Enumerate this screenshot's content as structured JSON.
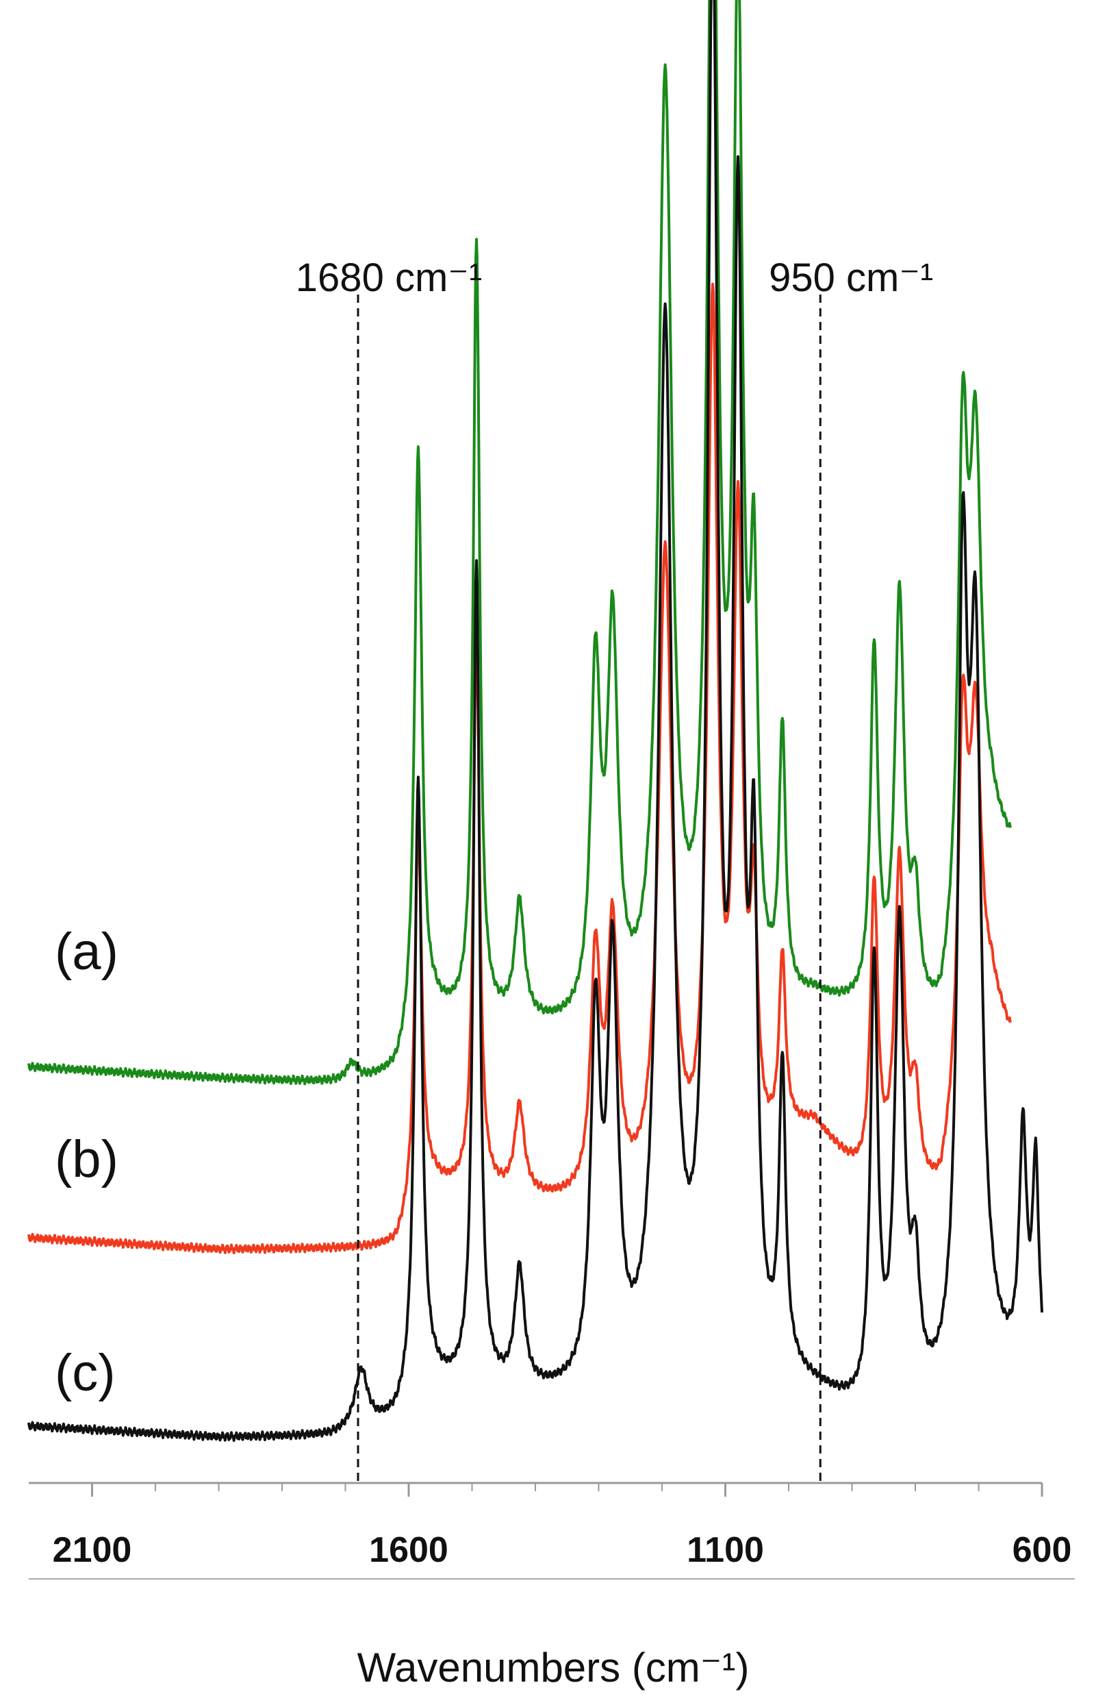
{
  "chart_data": {
    "type": "line",
    "title": "",
    "xlabel": "Wavenumbers (cm⁻¹)",
    "ylabel": "",
    "xlim": [
      2200,
      600
    ],
    "x_reversed": true,
    "grid": false,
    "legend": "none",
    "x_ticks": [
      {
        "value": 2100,
        "label": "2100"
      },
      {
        "value": 1600,
        "label": "1600"
      },
      {
        "value": 1100,
        "label": "1100"
      },
      {
        "value": 600,
        "label": "600"
      }
    ],
    "minor_tick_step": 100,
    "annotations": [
      {
        "x": 1680,
        "label": "1680 cm⁻¹",
        "style": "dashed-vertical"
      },
      {
        "x": 950,
        "label": "950 cm⁻¹",
        "style": "dashed-vertical"
      }
    ],
    "series": [
      {
        "label": "(a)",
        "color": "#1a8a1a",
        "offset": 0.61,
        "x_end": 650,
        "baseline": [
          [
            2200,
            0.02
          ],
          [
            1900,
            0.0
          ],
          [
            1700,
            -0.01
          ],
          [
            1620,
            0.0
          ],
          [
            1560,
            0.1
          ],
          [
            1100,
            0.04
          ],
          [
            1000,
            0.1
          ],
          [
            960,
            0.12
          ],
          [
            880,
            0.1
          ],
          [
            760,
            0.07
          ],
          [
            680,
            0.4
          ],
          [
            650,
            0.38
          ]
        ],
        "peaks": [
          {
            "x": 1690,
            "h": 0.03,
            "w": 10
          },
          {
            "x": 1585,
            "h": 1.0,
            "w": 7
          },
          {
            "x": 1493,
            "h": 1.32,
            "w": 6
          },
          {
            "x": 1425,
            "h": 0.2,
            "w": 9
          },
          {
            "x": 1305,
            "h": 0.58,
            "w": 9
          },
          {
            "x": 1278,
            "h": 0.65,
            "w": 10
          },
          {
            "x": 1195,
            "h": 1.6,
            "w": 13
          },
          {
            "x": 1120,
            "h": 2.1,
            "w": 10
          },
          {
            "x": 1080,
            "h": 1.7,
            "w": 9
          },
          {
            "x": 1055,
            "h": 0.65,
            "w": 7
          },
          {
            "x": 1010,
            "h": 0.45,
            "w": 6
          },
          {
            "x": 865,
            "h": 0.6,
            "w": 7
          },
          {
            "x": 825,
            "h": 0.7,
            "w": 9
          },
          {
            "x": 800,
            "h": 0.18,
            "w": 8
          },
          {
            "x": 725,
            "h": 0.8,
            "w": 9
          },
          {
            "x": 705,
            "h": 0.72,
            "w": 11
          }
        ]
      },
      {
        "label": "(b)",
        "color": "#f03a1e",
        "offset": 0.32,
        "x_end": 650,
        "baseline": [
          [
            2200,
            0.02
          ],
          [
            1900,
            0.0
          ],
          [
            1620,
            0.0
          ],
          [
            1560,
            0.1
          ],
          [
            1100,
            0.04
          ],
          [
            1000,
            0.18
          ],
          [
            960,
            0.2
          ],
          [
            880,
            0.1
          ],
          [
            760,
            0.07
          ],
          [
            680,
            0.4
          ],
          [
            650,
            0.35
          ]
        ],
        "peaks": [
          {
            "x": 1585,
            "h": 0.65,
            "w": 7
          },
          {
            "x": 1493,
            "h": 0.95,
            "w": 6
          },
          {
            "x": 1425,
            "h": 0.15,
            "w": 9
          },
          {
            "x": 1305,
            "h": 0.4,
            "w": 9
          },
          {
            "x": 1278,
            "h": 0.45,
            "w": 10
          },
          {
            "x": 1195,
            "h": 1.1,
            "w": 13
          },
          {
            "x": 1120,
            "h": 1.5,
            "w": 10
          },
          {
            "x": 1080,
            "h": 1.1,
            "w": 9
          },
          {
            "x": 1055,
            "h": 0.4,
            "w": 7
          },
          {
            "x": 1010,
            "h": 0.3,
            "w": 6
          },
          {
            "x": 865,
            "h": 0.5,
            "w": 7
          },
          {
            "x": 825,
            "h": 0.55,
            "w": 9
          },
          {
            "x": 800,
            "h": 0.15,
            "w": 8
          },
          {
            "x": 725,
            "h": 0.62,
            "w": 9
          },
          {
            "x": 705,
            "h": 0.55,
            "w": 11
          }
        ]
      },
      {
        "label": "(c)",
        "color": "#111111",
        "offset": 0.0,
        "x_end": 600,
        "baseline": [
          [
            2200,
            0.02
          ],
          [
            1900,
            0.0
          ],
          [
            1720,
            0.0
          ],
          [
            1620,
            0.02
          ],
          [
            1560,
            0.08
          ],
          [
            1100,
            0.04
          ],
          [
            1000,
            0.08
          ],
          [
            950,
            0.06
          ],
          [
            880,
            0.02
          ],
          [
            760,
            0.04
          ],
          [
            680,
            0.1
          ],
          [
            600,
            0.08
          ]
        ],
        "peaks": [
          {
            "x": 1675,
            "h": 0.1,
            "w": 12
          },
          {
            "x": 1585,
            "h": 1.05,
            "w": 7
          },
          {
            "x": 1493,
            "h": 1.4,
            "w": 6
          },
          {
            "x": 1425,
            "h": 0.2,
            "w": 9
          },
          {
            "x": 1305,
            "h": 0.6,
            "w": 9
          },
          {
            "x": 1278,
            "h": 0.7,
            "w": 10
          },
          {
            "x": 1195,
            "h": 1.8,
            "w": 13
          },
          {
            "x": 1120,
            "h": 2.4,
            "w": 10
          },
          {
            "x": 1080,
            "h": 1.9,
            "w": 9
          },
          {
            "x": 1055,
            "h": 0.75,
            "w": 7
          },
          {
            "x": 1010,
            "h": 0.5,
            "w": 6
          },
          {
            "x": 865,
            "h": 0.75,
            "w": 7
          },
          {
            "x": 825,
            "h": 0.8,
            "w": 9
          },
          {
            "x": 800,
            "h": 0.2,
            "w": 8
          },
          {
            "x": 725,
            "h": 1.25,
            "w": 9
          },
          {
            "x": 705,
            "h": 1.15,
            "w": 11
          },
          {
            "x": 630,
            "h": 0.4,
            "w": 7
          },
          {
            "x": 610,
            "h": 0.35,
            "w": 6
          }
        ]
      }
    ]
  }
}
